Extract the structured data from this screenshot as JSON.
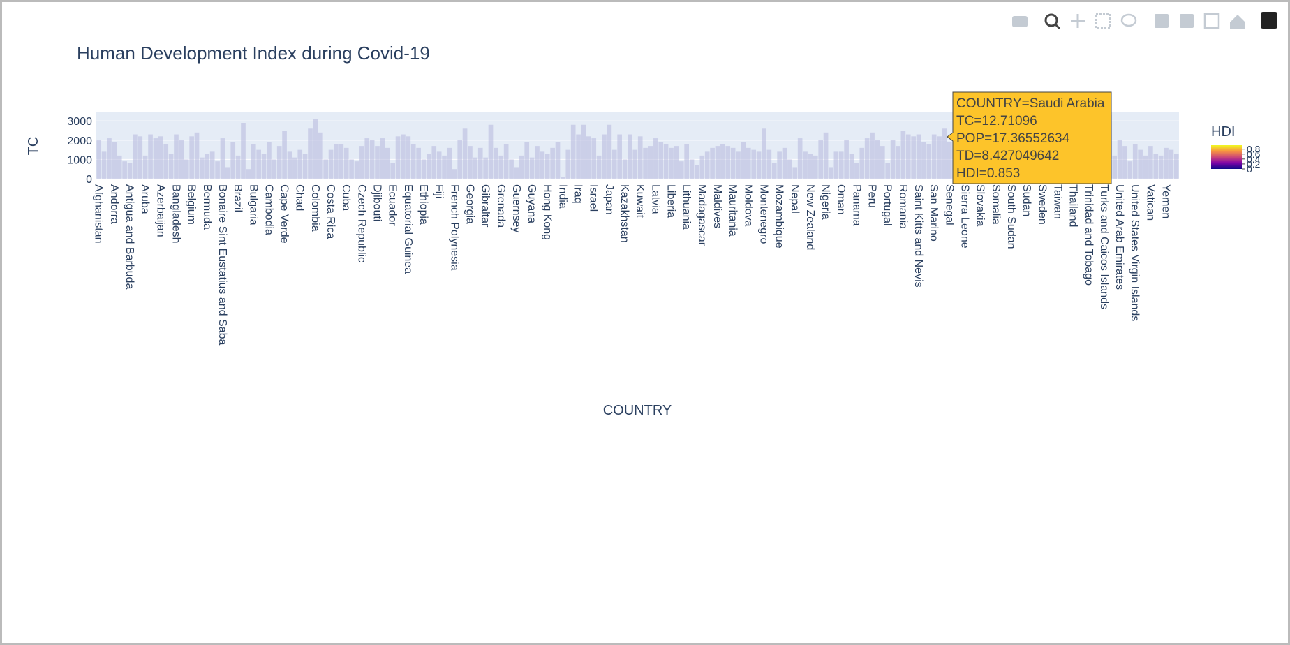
{
  "chart_data": {
    "type": "bar",
    "title": "Human Development Index during Covid-19",
    "x_label": "COUNTRY",
    "y_label": "TC",
    "color": "#b9bde0",
    "grid": true,
    "ylim": [
      0,
      3480
    ],
    "yticks": [
      0,
      1000,
      2000,
      3000
    ],
    "categories": [
      "Afghanistan",
      null,
      null,
      "Andorra",
      null,
      null,
      "Antigua and Barbuda",
      null,
      null,
      "Aruba",
      null,
      null,
      "Azerbaijan",
      null,
      null,
      "Bangladesh",
      null,
      null,
      "Belgium",
      null,
      null,
      "Bermuda",
      null,
      null,
      "Bonaire Sint Eustatius and Saba",
      null,
      null,
      "Brazil",
      null,
      null,
      "Bulgaria",
      null,
      null,
      "Cambodia",
      null,
      null,
      "Cape Verde",
      null,
      null,
      "Chad",
      null,
      null,
      "Colombia",
      null,
      null,
      "Costa Rica",
      null,
      null,
      "Cuba",
      null,
      null,
      "Czech Republic",
      null,
      null,
      "Djibouti",
      null,
      null,
      "Ecuador",
      null,
      null,
      "Equatorial Guinea",
      null,
      null,
      "Ethiopia",
      null,
      null,
      "Fiji",
      null,
      null,
      "French Polynesia",
      null,
      null,
      "Georgia",
      null,
      null,
      "Gibraltar",
      null,
      null,
      "Grenada",
      null,
      null,
      "Guernsey",
      null,
      null,
      "Guyana",
      null,
      null,
      "Hong Kong",
      null,
      null,
      "India",
      null,
      null,
      "Iraq",
      null,
      null,
      "Israel",
      null,
      null,
      "Japan",
      null,
      null,
      "Kazakhstan",
      null,
      null,
      "Kuwait",
      null,
      null,
      "Latvia",
      null,
      null,
      "Liberia",
      null,
      null,
      "Lithuania",
      null,
      null,
      "Madagascar",
      null,
      null,
      "Maldives",
      null,
      null,
      "Mauritania",
      null,
      null,
      "Moldova",
      null,
      null,
      "Montenegro",
      null,
      null,
      "Mozambique",
      null,
      null,
      "Nepal",
      null,
      null,
      "New Zealand",
      null,
      null,
      "Nigeria",
      null,
      null,
      "Oman",
      null,
      null,
      "Panama",
      null,
      null,
      "Peru",
      null,
      null,
      "Portugal",
      null,
      null,
      "Romania",
      null,
      null,
      "Saint Kitts and Nevis",
      null,
      null,
      "San Marino",
      null,
      null,
      "Senegal",
      null,
      null,
      "Sierra Leone",
      null,
      null,
      "Slovakia",
      null,
      null,
      "Somalia",
      null,
      null,
      "South Sudan",
      null,
      null,
      "Sudan",
      null,
      null,
      "Sweden",
      null,
      null,
      "Taiwan",
      null,
      null,
      "Thailand",
      null,
      null,
      "Trinidad and Tobago",
      null,
      null,
      "Turks and Caicos Islands",
      null,
      null,
      "United Arab Emirates",
      null,
      null,
      "United States Virgin Islands",
      null,
      null,
      "Vatican",
      null,
      null,
      "Yemen",
      null,
      null
    ],
    "values": [
      2000,
      1400,
      2100,
      1900,
      1200,
      900,
      800,
      2300,
      2200,
      1200,
      2300,
      2100,
      2200,
      1800,
      1300,
      2300,
      2000,
      1000,
      2200,
      2400,
      1100,
      1300,
      1400,
      900,
      2100,
      600,
      1900,
      1200,
      2900,
      500,
      1800,
      1500,
      1300,
      1900,
      1000,
      1700,
      2500,
      1400,
      1100,
      1500,
      1300,
      2600,
      3100,
      2400,
      1000,
      1500,
      1800,
      1800,
      1600,
      1000,
      900,
      1700,
      2100,
      2000,
      1700,
      2100,
      1600,
      800,
      2200,
      2300,
      2200,
      1800,
      1600,
      1000,
      1300,
      1700,
      1400,
      1200,
      1600,
      500,
      2000,
      2600,
      1700,
      1100,
      1600,
      1100,
      2800,
      1600,
      1200,
      1800,
      1000,
      600,
      1200,
      1900,
      1100,
      1700,
      1400,
      1300,
      1600,
      1900,
      100,
      1500,
      2800,
      2300,
      2800,
      2200,
      2100,
      1200,
      2300,
      2800,
      1500,
      2300,
      1000,
      2300,
      1500,
      2200,
      1600,
      1700,
      2100,
      1900,
      1800,
      1600,
      1700,
      900,
      1800,
      1000,
      700,
      1200,
      1400,
      1600,
      1700,
      1800,
      1700,
      1600,
      1400,
      1900,
      1600,
      1500,
      1400,
      2600,
      1500,
      800,
      1400,
      1600,
      1000,
      600,
      2100,
      1400,
      1300,
      1200,
      2000,
      2400,
      600,
      1400,
      1400,
      2000,
      1300,
      800,
      1600,
      2100,
      2400,
      2000,
      1700,
      800,
      2000,
      1700,
      2500,
      2300,
      2200,
      2300,
      1900,
      1800,
      2300,
      2200,
      2600,
      1900,
      1500,
      900,
      700,
      1000,
      1400,
      1200,
      1300,
      1100,
      2100,
      1600,
      1900,
      1400,
      1500,
      1200,
      1000,
      1700,
      1300,
      1800,
      1400,
      1900,
      1000,
      1700,
      1200,
      1400,
      1900,
      2100,
      2300,
      2600,
      2400,
      2900,
      3300,
      1200,
      2000,
      1700,
      900,
      1800,
      1500,
      1200,
      1700,
      1300,
      1200,
      1600,
      1500,
      1300
    ],
    "colorbar": {
      "title": "HDI",
      "clim": [
        0,
        0.96
      ],
      "ticks": [
        0,
        0.2,
        0.4,
        0.6,
        0.8
      ]
    },
    "hover": {
      "lines": [
        "COUNTRY=Saudi Arabia",
        "TC=12.71096",
        "POP=17.36552634",
        "TD=8.427049642",
        "HDI=0.853"
      ]
    }
  }
}
